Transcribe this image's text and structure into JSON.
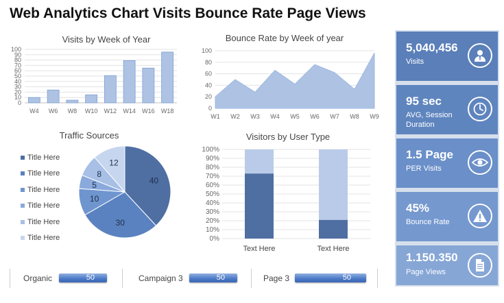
{
  "title": "Web Analytics Chart Visits Bounce Rate Page Views",
  "colors": {
    "accent": "#4472c4",
    "light": "#aec3e4",
    "kpi_dark": "#5a7fb9",
    "kpi_mid": "#6a8fc9",
    "kpi_light": "#86a6d6"
  },
  "chart_data": [
    {
      "type": "bar",
      "title": "Visits  by Week of Year",
      "categories": [
        "W4",
        "W6",
        "W8",
        "W10",
        "W12",
        "W14",
        "W16",
        "W18"
      ],
      "values": [
        10,
        24,
        5,
        15,
        51,
        79,
        65,
        95
      ],
      "yticks": [
        "0",
        "10",
        "20",
        "30",
        "40",
        "50",
        "60",
        "70",
        "80",
        "90",
        "100"
      ],
      "ylim": [
        0,
        100
      ],
      "grid": true
    },
    {
      "type": "area",
      "title": "Bounce Rate by Week of year",
      "categories": [
        "W1",
        "W2",
        "W3",
        "W4",
        "W5",
        "W6",
        "W7",
        "W8",
        "W9"
      ],
      "values": [
        20,
        50,
        28,
        66,
        42,
        76,
        62,
        33,
        96
      ],
      "yticks": [
        "0",
        "20",
        "40",
        "60",
        "80",
        "100"
      ],
      "ylim": [
        0,
        100
      ],
      "grid": true
    },
    {
      "type": "pie",
      "title": "Traffic Sources",
      "labels": [
        "Title Here",
        "Title Here",
        "Title Here",
        "Title Here",
        "Title Here",
        "Title Here"
      ],
      "values": [
        40,
        30,
        10,
        5,
        8,
        12
      ],
      "value_labels": [
        "40",
        "30",
        "10",
        "5",
        "8",
        "12"
      ],
      "colors": [
        "#4f6fa3",
        "#5b82c0",
        "#6f95cf",
        "#8aa9dc",
        "#a8bfe6",
        "#c7d6ef"
      ],
      "legend": "left"
    },
    {
      "type": "bar",
      "stacked": true,
      "title": "Visitors by User Type",
      "categories": [
        "Text Here",
        "Text Here"
      ],
      "series": [
        {
          "values": [
            73,
            21
          ],
          "color": "#4f6fa3"
        },
        {
          "values": [
            27,
            79
          ],
          "color": "#b9cbe8"
        }
      ],
      "yticks": [
        "0%",
        "10%",
        "20%",
        "30%",
        "40%",
        "50%",
        "60%",
        "70%",
        "80%",
        "90%",
        "100%"
      ],
      "ylim": [
        0,
        100
      ],
      "grid": true
    }
  ],
  "kpis": [
    {
      "value": "5,040,456",
      "label": "Visits",
      "icon": "user-icon"
    },
    {
      "value": "95 sec",
      "label": "AVG, Session Duration",
      "icon": "clock-icon"
    },
    {
      "value": "1.5 Page",
      "label": "PER Visits",
      "icon": "eye-icon"
    },
    {
      "value": "45%",
      "label": "Bounce Rate",
      "icon": "warning-icon"
    },
    {
      "value": "1.150.350",
      "label": "Page Views",
      "icon": "document-icon"
    }
  ],
  "metrics": [
    {
      "label": "Organic",
      "value": "50"
    },
    {
      "label": "Campaign 3",
      "value": "50"
    },
    {
      "label": "Page 3",
      "value": "50"
    }
  ]
}
